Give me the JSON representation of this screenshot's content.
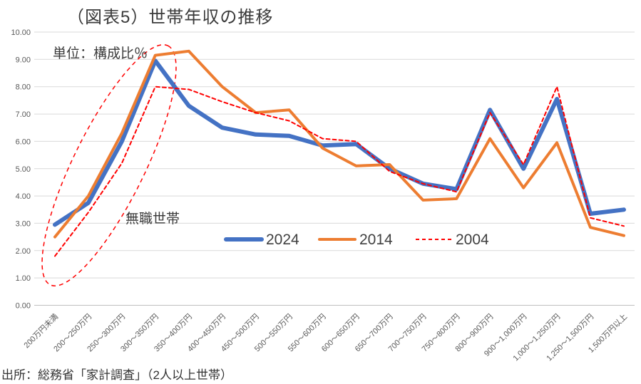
{
  "title": "（図表5）世帯年収の推移",
  "annotations": {
    "unit_note": "単位：構成比％",
    "ellipse_label": "無職世帯"
  },
  "source_note": "出所：総務省「家計調査」（2人以上世帯）",
  "colors": {
    "series_2024": "#4472C4",
    "series_2014": "#ED7D31",
    "series_2004": "#FF0000",
    "gridline": "#D9D9D9",
    "zero_axis": "#BFBFBF",
    "axis_text": "#595959",
    "legend_text": "#404040"
  },
  "chart_data": {
    "type": "line",
    "title": "（図表5）世帯年収の推移",
    "unit": "構成比％",
    "grid": true,
    "legend_position": "inside-bottom",
    "ylim": [
      0,
      10
    ],
    "ytick_step": 1,
    "y_ticks": [
      "0.00",
      "1.00",
      "2.00",
      "3.00",
      "4.00",
      "5.00",
      "6.00",
      "7.00",
      "8.00",
      "9.00",
      "10.00"
    ],
    "categories": [
      "200万円未満",
      "200～250万円",
      "250～300万円",
      "300～350万円",
      "350～400万円",
      "400～450万円",
      "450～500万円",
      "500～550万円",
      "550～600万円",
      "600～650万円",
      "650～700万円",
      "700～750万円",
      "750～800万円",
      "800～900万円",
      "900～1,000万円",
      "1,000～1,250万円",
      "1,250～1,500万円",
      "1,500万円以上"
    ],
    "series": [
      {
        "name": "2024",
        "color": "#4472C4",
        "width": 6,
        "dash": null,
        "values": [
          2.95,
          3.75,
          6.0,
          8.95,
          7.3,
          6.5,
          6.25,
          6.2,
          5.85,
          5.9,
          5.0,
          4.45,
          4.25,
          7.15,
          5.0,
          7.55,
          3.35,
          3.5
        ]
      },
      {
        "name": "2014",
        "color": "#ED7D31",
        "width": 4,
        "dash": null,
        "values": [
          2.5,
          4.0,
          6.3,
          9.15,
          9.3,
          8.0,
          7.05,
          7.15,
          5.75,
          5.1,
          5.15,
          3.85,
          3.9,
          6.1,
          4.3,
          5.95,
          2.85,
          2.55
        ]
      },
      {
        "name": "2004",
        "color": "#FF0000",
        "width": 2,
        "dash": "5 4",
        "values": [
          1.8,
          3.4,
          5.2,
          8.0,
          7.9,
          7.45,
          7.05,
          6.75,
          6.1,
          6.0,
          4.9,
          4.45,
          4.15,
          7.05,
          5.15,
          8.0,
          3.2,
          2.9
        ]
      }
    ]
  }
}
